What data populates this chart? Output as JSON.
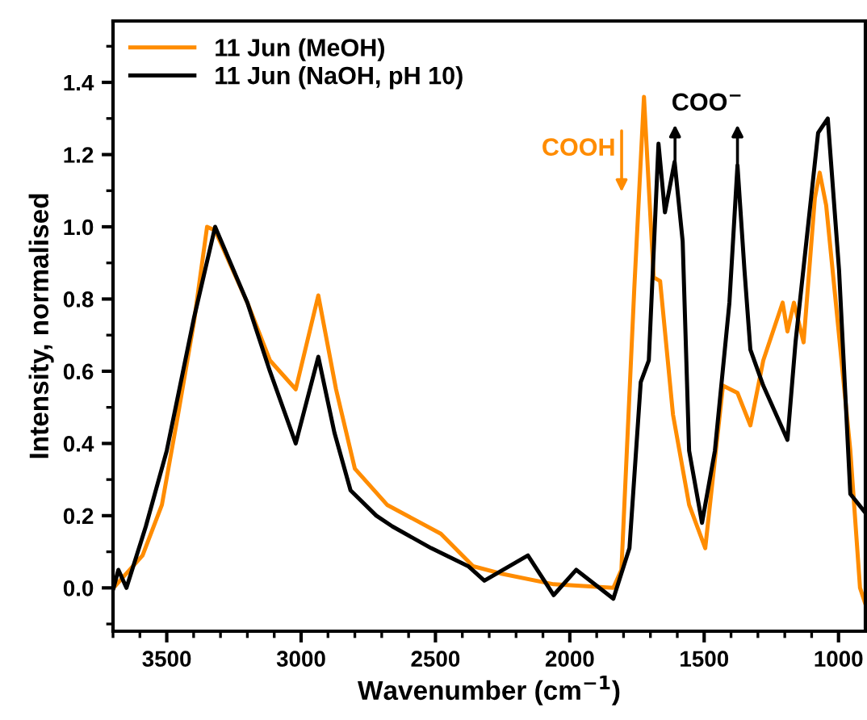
{
  "chart_data": {
    "type": "line",
    "xlabel": "Wavenumber (cm$^{−1}$)",
    "ylabel": "Intensity, normalised",
    "xlim": [
      3700,
      900
    ],
    "ylim": [
      -0.12,
      1.57
    ],
    "xticks": [
      {
        "value": 3700,
        "label": null
      },
      {
        "value": 3600,
        "label": null
      },
      3500,
      {
        "value": 3400,
        "label": null
      },
      {
        "value": 3300,
        "label": null
      },
      {
        "value": 3200,
        "label": null
      },
      {
        "value": 3100,
        "label": null
      },
      3000,
      {
        "value": 2900,
        "label": null
      },
      {
        "value": 2800,
        "label": null
      },
      {
        "value": 2700,
        "label": null
      },
      {
        "value": 2600,
        "label": null
      },
      2500,
      {
        "value": 2400,
        "label": null
      },
      {
        "value": 2300,
        "label": null
      },
      {
        "value": 2200,
        "label": null
      },
      {
        "value": 2100,
        "label": null
      },
      2000,
      {
        "value": 1900,
        "label": null
      },
      {
        "value": 1800,
        "label": null
      },
      {
        "value": 1700,
        "label": null
      },
      {
        "value": 1600,
        "label": null
      },
      1500,
      {
        "value": 1400,
        "label": null
      },
      {
        "value": 1300,
        "label": null
      },
      {
        "value": 1200,
        "label": null
      },
      {
        "value": 1100,
        "label": null
      },
      1000
    ],
    "yticks": [
      {
        "value": -0.1,
        "label": null
      },
      {
        "value": 0.0,
        "label": "0.0"
      },
      {
        "value": 0.1,
        "label": null
      },
      {
        "value": 0.2,
        "label": "0.2"
      },
      {
        "value": 0.3,
        "label": null
      },
      {
        "value": 0.4,
        "label": "0.4"
      },
      {
        "value": 0.5,
        "label": null
      },
      {
        "value": 0.6,
        "label": "0.6"
      },
      {
        "value": 0.7,
        "label": null
      },
      {
        "value": 0.8,
        "label": "0.8"
      },
      {
        "value": 0.9,
        "label": null
      },
      {
        "value": 1.0,
        "label": "1.0"
      },
      {
        "value": 1.1,
        "label": null
      },
      {
        "value": 1.2,
        "label": "1.2"
      },
      {
        "value": 1.3,
        "label": null
      },
      {
        "value": 1.4,
        "label": "1.4"
      },
      {
        "value": 1.5,
        "label": null
      }
    ],
    "grid": false,
    "legend": "top left",
    "marker": "none",
    "line_style": "solid",
    "annotations": [
      "COOH",
      "COO$^{−}$"
    ],
    "series": [
      {
        "name": "11 Jun (MeOH)",
        "color": "#ff8c00",
        "x": [
          3698,
          3590,
          3518,
          3458,
          3398,
          3350,
          3320,
          3200,
          3116,
          3020,
          2936,
          2870,
          2800,
          2680,
          2480,
          2360,
          2258,
          2060,
          1838,
          1808,
          1760,
          1724,
          1688,
          1664,
          1616,
          1556,
          1496,
          1436,
          1430,
          1376,
          1328,
          1280,
          1208,
          1190,
          1166,
          1130,
          1088,
          1070,
          1046,
          1010,
          956,
          920,
          902
        ],
        "values": [
          0.0,
          0.09,
          0.23,
          0.48,
          0.74,
          1.0,
          0.99,
          0.79,
          0.63,
          0.55,
          0.81,
          0.55,
          0.33,
          0.23,
          0.15,
          0.06,
          0.04,
          0.01,
          0.0,
          0.05,
          0.83,
          1.36,
          0.86,
          0.85,
          0.48,
          0.23,
          0.11,
          0.52,
          0.56,
          0.54,
          0.45,
          0.63,
          0.79,
          0.71,
          0.79,
          0.68,
          1.08,
          1.15,
          1.06,
          0.79,
          0.38,
          0.0,
          -0.04
        ]
      },
      {
        "name": "11 Jun (NaOH, pH 10)",
        "color": "#000000",
        "x": [
          3698,
          3680,
          3650,
          3578,
          3500,
          3398,
          3320,
          3200,
          3116,
          3020,
          2936,
          2876,
          2816,
          2720,
          2660,
          2516,
          2378,
          2318,
          2156,
          2060,
          1976,
          1838,
          1778,
          1736,
          1706,
          1670,
          1646,
          1610,
          1580,
          1556,
          1508,
          1460,
          1406,
          1376,
          1350,
          1328,
          1280,
          1190,
          1160,
          1076,
          1040,
          998,
          956,
          902
        ],
        "values": [
          0.0,
          0.05,
          0.0,
          0.17,
          0.38,
          0.75,
          1.0,
          0.79,
          0.6,
          0.4,
          0.64,
          0.43,
          0.27,
          0.2,
          0.17,
          0.11,
          0.06,
          0.02,
          0.09,
          -0.02,
          0.05,
          -0.03,
          0.11,
          0.57,
          0.63,
          1.23,
          1.04,
          1.18,
          0.96,
          0.38,
          0.18,
          0.38,
          0.79,
          1.17,
          0.88,
          0.66,
          0.56,
          0.41,
          0.68,
          1.26,
          1.3,
          0.88,
          0.26,
          0.21
        ]
      }
    ]
  }
}
